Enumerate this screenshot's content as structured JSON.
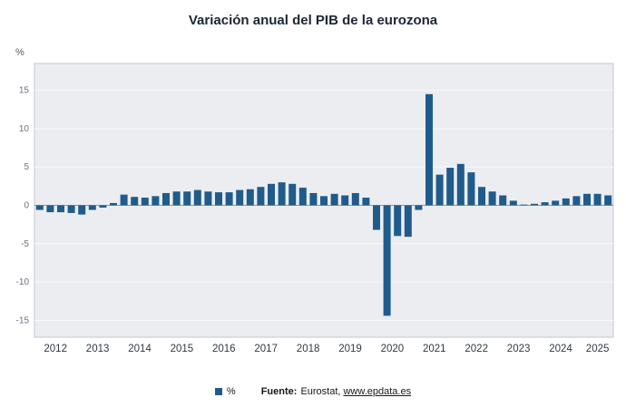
{
  "title": "Variación anual del PIB de la eurozona",
  "y_unit_label": "%",
  "legend": {
    "series_label": "%",
    "source_label": "Fuente:",
    "source_text": "Eurostat,",
    "source_link": "www.epdata.es"
  },
  "colors": {
    "bar": "#1F5C8B",
    "plot_bg": "#ECEDF1",
    "plot_border": "#C3C8D1",
    "grid": "#F8F9FB",
    "zero_line": "#8F959E",
    "tick_text": "#6B7280",
    "year_text": "#2E3A47"
  },
  "chart_data": {
    "type": "bar",
    "title": "Variación anual del PIB de la eurozona",
    "xlabel": "",
    "ylabel": "%",
    "ylim": [
      -15,
      15
    ],
    "y_ticks": [
      15,
      10,
      5,
      0,
      -5,
      -10,
      -15
    ],
    "grid": true,
    "legend_position": "bottom",
    "x_year_labels": [
      "2012",
      "2013",
      "2014",
      "2015",
      "2016",
      "2017",
      "2018",
      "2019",
      "2020",
      "2021",
      "2022",
      "2023",
      "2024",
      "2025"
    ],
    "quarters_per_year": [
      4,
      4,
      4,
      4,
      4,
      4,
      4,
      4,
      4,
      4,
      4,
      4,
      4,
      3
    ],
    "categories": [
      "2012T1",
      "2012T2",
      "2012T3",
      "2012T4",
      "2013T1",
      "2013T2",
      "2013T3",
      "2013T4",
      "2014T1",
      "2014T2",
      "2014T3",
      "2014T4",
      "2015T1",
      "2015T2",
      "2015T3",
      "2015T4",
      "2016T1",
      "2016T2",
      "2016T3",
      "2016T4",
      "2017T1",
      "2017T2",
      "2017T3",
      "2017T4",
      "2018T1",
      "2018T2",
      "2018T3",
      "2018T4",
      "2019T1",
      "2019T2",
      "2019T3",
      "2019T4",
      "2020T1",
      "2020T2",
      "2020T3",
      "2020T4",
      "2021T1",
      "2021T2",
      "2021T3",
      "2021T4",
      "2022T1",
      "2022T2",
      "2022T3",
      "2022T4",
      "2023T1",
      "2023T2",
      "2023T3",
      "2023T4",
      "2024T1",
      "2024T2",
      "2024T3",
      "2024T4",
      "2025T1",
      "2025T2",
      "2025T3"
    ],
    "values": [
      -0.6,
      -0.9,
      -0.9,
      -1.0,
      -1.2,
      -0.6,
      -0.3,
      0.3,
      1.4,
      1.1,
      1.0,
      1.2,
      1.6,
      1.8,
      1.8,
      2.0,
      1.8,
      1.7,
      1.7,
      2.0,
      2.1,
      2.4,
      2.8,
      3.0,
      2.8,
      2.3,
      1.6,
      1.2,
      1.5,
      1.3,
      1.6,
      1.0,
      -3.2,
      -14.4,
      -4.0,
      -4.1,
      -0.6,
      14.5,
      4.0,
      4.9,
      5.4,
      4.3,
      2.4,
      1.8,
      1.3,
      0.6,
      0.1,
      0.2,
      0.4,
      0.6,
      0.9,
      1.2,
      1.5,
      1.5,
      1.3
    ]
  }
}
